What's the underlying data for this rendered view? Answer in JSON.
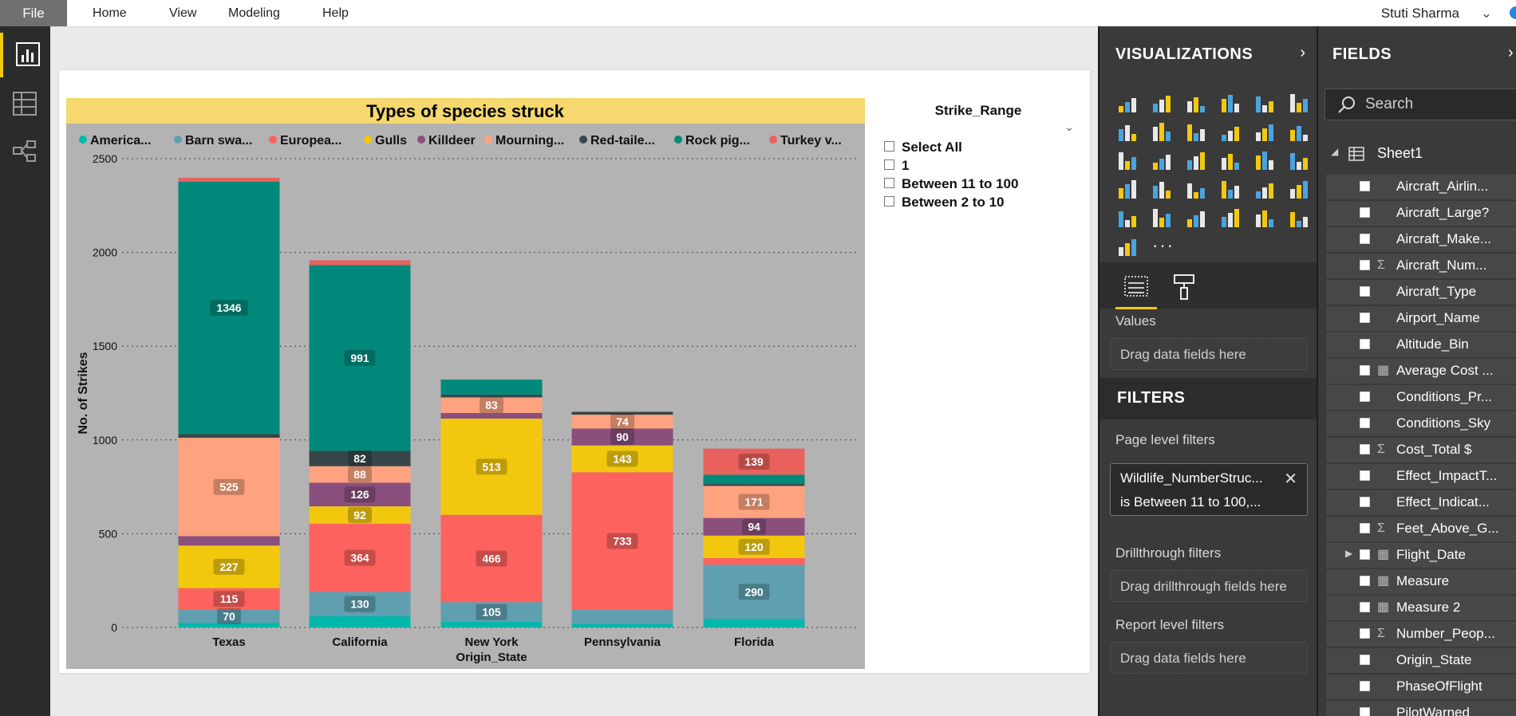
{
  "menubar": {
    "file": "File",
    "items": [
      "Home",
      "View",
      "Modeling",
      "Help"
    ],
    "user": "Stuti Sharma"
  },
  "chart_data": {
    "type": "bar",
    "stacked": true,
    "title": "Types of species struck",
    "xlabel": "Origin_State",
    "ylabel": "No. of Strikes",
    "ylim": [
      0,
      2500
    ],
    "yticks": [
      0,
      500,
      1000,
      1500,
      2000,
      2500
    ],
    "grid": true,
    "legend_position": "top",
    "categories": [
      "Texas",
      "California",
      "New York",
      "Pennsylvania",
      "Florida"
    ],
    "series": [
      {
        "name": "America...",
        "color": "#01b8aa",
        "values": [
          25,
          60,
          30,
          20,
          45
        ]
      },
      {
        "name": "Barn swa...",
        "color": "#5f9fb0",
        "values": [
          70,
          130,
          105,
          75,
          290
        ]
      },
      {
        "name": "Europea...",
        "color": "#fd625e",
        "values": [
          115,
          364,
          466,
          733,
          35
        ]
      },
      {
        "name": "Gulls",
        "color": "#f2c80f",
        "values": [
          227,
          92,
          513,
          143,
          120
        ]
      },
      {
        "name": "Killdeer",
        "color": "#8a4f7d",
        "values": [
          50,
          126,
          30,
          90,
          94
        ]
      },
      {
        "name": "Mourning...",
        "color": "#fea27f",
        "values": [
          525,
          88,
          83,
          74,
          171
        ]
      },
      {
        "name": "Red-taile...",
        "color": "#374649",
        "values": [
          20,
          82,
          15,
          15,
          10
        ]
      },
      {
        "name": "Rock pig...",
        "color": "#00897b",
        "values": [
          1346,
          991,
          80,
          0,
          50
        ]
      },
      {
        "name": "Turkey v...",
        "color": "#e8615d",
        "values": [
          20,
          25,
          0,
          0,
          139
        ]
      }
    ],
    "labels": [
      {
        "cat": 0,
        "series": 1,
        "text": "70"
      },
      {
        "cat": 0,
        "series": 2,
        "text": "115"
      },
      {
        "cat": 0,
        "series": 3,
        "text": "227"
      },
      {
        "cat": 0,
        "series": 5,
        "text": "525"
      },
      {
        "cat": 0,
        "series": 7,
        "text": "1346"
      },
      {
        "cat": 1,
        "series": 1,
        "text": "130"
      },
      {
        "cat": 1,
        "series": 2,
        "text": "364"
      },
      {
        "cat": 1,
        "series": 3,
        "text": "92"
      },
      {
        "cat": 1,
        "series": 4,
        "text": "126"
      },
      {
        "cat": 1,
        "series": 5,
        "text": "88"
      },
      {
        "cat": 1,
        "series": 6,
        "text": "82"
      },
      {
        "cat": 1,
        "series": 7,
        "text": "991"
      },
      {
        "cat": 2,
        "series": 1,
        "text": "105"
      },
      {
        "cat": 2,
        "series": 2,
        "text": "466"
      },
      {
        "cat": 2,
        "series": 3,
        "text": "513"
      },
      {
        "cat": 2,
        "series": 5,
        "text": "83"
      },
      {
        "cat": 3,
        "series": 2,
        "text": "733"
      },
      {
        "cat": 3,
        "series": 3,
        "text": "143"
      },
      {
        "cat": 3,
        "series": 4,
        "text": "90"
      },
      {
        "cat": 3,
        "series": 5,
        "text": "74"
      },
      {
        "cat": 4,
        "series": 1,
        "text": "290"
      },
      {
        "cat": 4,
        "series": 3,
        "text": "120"
      },
      {
        "cat": 4,
        "series": 4,
        "text": "94"
      },
      {
        "cat": 4,
        "series": 5,
        "text": "171"
      },
      {
        "cat": 4,
        "series": 8,
        "text": "139"
      }
    ],
    "colors": {
      "title_bg": "#f5d86e",
      "plot_bg": "#b3b3b3"
    }
  },
  "slicer": {
    "title": "Strike_Range",
    "items": [
      "Select All",
      "1",
      "Between 11 to 100",
      "Between 2 to 10"
    ]
  },
  "visualizations": {
    "title": "VISUALIZATIONS",
    "values_label": "Values",
    "values_drop": "Drag data fields here"
  },
  "filters": {
    "title": "FILTERS",
    "page_level": "Page level filters",
    "filter_line1": "Wildlife_NumberStruc...",
    "filter_line2": "is Between 11 to 100,...",
    "drillthrough": "Drillthrough filters",
    "drillthrough_drop": "Drag drillthrough fields here",
    "report_level": "Report level filters",
    "report_drop": "Drag data fields here"
  },
  "fields": {
    "title": "FIELDS",
    "search_placeholder": "Search",
    "table": "Sheet1",
    "items": [
      {
        "name": "Aircraft_Airlin...",
        "kind": "text"
      },
      {
        "name": "Aircraft_Large?",
        "kind": "text"
      },
      {
        "name": "Aircraft_Make...",
        "kind": "text"
      },
      {
        "name": "Aircraft_Num...",
        "kind": "sum"
      },
      {
        "name": "Aircraft_Type",
        "kind": "text"
      },
      {
        "name": "Airport_Name",
        "kind": "text"
      },
      {
        "name": "Altitude_Bin",
        "kind": "text"
      },
      {
        "name": "Average Cost ...",
        "kind": "measure"
      },
      {
        "name": "Conditions_Pr...",
        "kind": "text"
      },
      {
        "name": "Conditions_Sky",
        "kind": "text"
      },
      {
        "name": "Cost_Total $",
        "kind": "sum"
      },
      {
        "name": "Effect_ImpactT...",
        "kind": "text"
      },
      {
        "name": "Effect_Indicat...",
        "kind": "text"
      },
      {
        "name": "Feet_Above_G...",
        "kind": "sum"
      },
      {
        "name": "Flight_Date",
        "kind": "date"
      },
      {
        "name": "Measure",
        "kind": "measure"
      },
      {
        "name": "Measure 2",
        "kind": "measure"
      },
      {
        "name": "Number_Peop...",
        "kind": "sum"
      },
      {
        "name": "Origin_State",
        "kind": "text"
      },
      {
        "name": "PhaseOfFlight",
        "kind": "text"
      },
      {
        "name": "PilotWarned",
        "kind": "text"
      }
    ]
  },
  "icons": {
    "rail": [
      "report-icon",
      "data-icon",
      "relationships-icon"
    ],
    "viz_tabs": [
      "fields-tab-icon",
      "format-tab-icon"
    ]
  }
}
